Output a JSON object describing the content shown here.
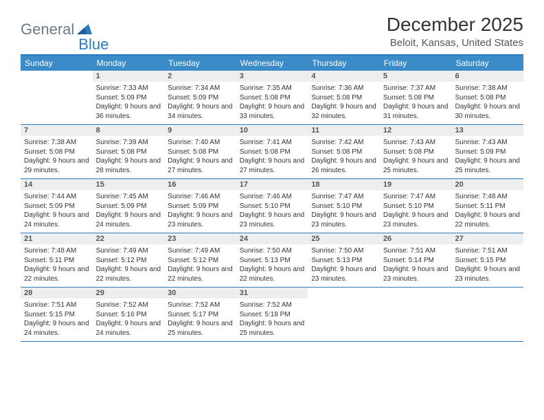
{
  "logo": {
    "text1": "General",
    "text2": "Blue"
  },
  "title": "December 2025",
  "location": "Beloit, Kansas, United States",
  "colors": {
    "header_bg": "#3b8bc9",
    "border": "#2b7bbf",
    "daynum_bg": "#eceef0",
    "text": "#333333"
  },
  "weekdays": [
    "Sunday",
    "Monday",
    "Tuesday",
    "Wednesday",
    "Thursday",
    "Friday",
    "Saturday"
  ],
  "first_day_index": 1,
  "days": [
    {
      "n": 1,
      "sunrise": "7:33 AM",
      "sunset": "5:09 PM",
      "daylight": "9 hours and 36 minutes."
    },
    {
      "n": 2,
      "sunrise": "7:34 AM",
      "sunset": "5:09 PM",
      "daylight": "9 hours and 34 minutes."
    },
    {
      "n": 3,
      "sunrise": "7:35 AM",
      "sunset": "5:08 PM",
      "daylight": "9 hours and 33 minutes."
    },
    {
      "n": 4,
      "sunrise": "7:36 AM",
      "sunset": "5:08 PM",
      "daylight": "9 hours and 32 minutes."
    },
    {
      "n": 5,
      "sunrise": "7:37 AM",
      "sunset": "5:08 PM",
      "daylight": "9 hours and 31 minutes."
    },
    {
      "n": 6,
      "sunrise": "7:38 AM",
      "sunset": "5:08 PM",
      "daylight": "9 hours and 30 minutes."
    },
    {
      "n": 7,
      "sunrise": "7:38 AM",
      "sunset": "5:08 PM",
      "daylight": "9 hours and 29 minutes."
    },
    {
      "n": 8,
      "sunrise": "7:39 AM",
      "sunset": "5:08 PM",
      "daylight": "9 hours and 28 minutes."
    },
    {
      "n": 9,
      "sunrise": "7:40 AM",
      "sunset": "5:08 PM",
      "daylight": "9 hours and 27 minutes."
    },
    {
      "n": 10,
      "sunrise": "7:41 AM",
      "sunset": "5:08 PM",
      "daylight": "9 hours and 27 minutes."
    },
    {
      "n": 11,
      "sunrise": "7:42 AM",
      "sunset": "5:08 PM",
      "daylight": "9 hours and 26 minutes."
    },
    {
      "n": 12,
      "sunrise": "7:43 AM",
      "sunset": "5:08 PM",
      "daylight": "9 hours and 25 minutes."
    },
    {
      "n": 13,
      "sunrise": "7:43 AM",
      "sunset": "5:09 PM",
      "daylight": "9 hours and 25 minutes."
    },
    {
      "n": 14,
      "sunrise": "7:44 AM",
      "sunset": "5:09 PM",
      "daylight": "9 hours and 24 minutes."
    },
    {
      "n": 15,
      "sunrise": "7:45 AM",
      "sunset": "5:09 PM",
      "daylight": "9 hours and 24 minutes."
    },
    {
      "n": 16,
      "sunrise": "7:46 AM",
      "sunset": "5:09 PM",
      "daylight": "9 hours and 23 minutes."
    },
    {
      "n": 17,
      "sunrise": "7:46 AM",
      "sunset": "5:10 PM",
      "daylight": "9 hours and 23 minutes."
    },
    {
      "n": 18,
      "sunrise": "7:47 AM",
      "sunset": "5:10 PM",
      "daylight": "9 hours and 23 minutes."
    },
    {
      "n": 19,
      "sunrise": "7:47 AM",
      "sunset": "5:10 PM",
      "daylight": "9 hours and 23 minutes."
    },
    {
      "n": 20,
      "sunrise": "7:48 AM",
      "sunset": "5:11 PM",
      "daylight": "9 hours and 22 minutes."
    },
    {
      "n": 21,
      "sunrise": "7:48 AM",
      "sunset": "5:11 PM",
      "daylight": "9 hours and 22 minutes."
    },
    {
      "n": 22,
      "sunrise": "7:49 AM",
      "sunset": "5:12 PM",
      "daylight": "9 hours and 22 minutes."
    },
    {
      "n": 23,
      "sunrise": "7:49 AM",
      "sunset": "5:12 PM",
      "daylight": "9 hours and 22 minutes."
    },
    {
      "n": 24,
      "sunrise": "7:50 AM",
      "sunset": "5:13 PM",
      "daylight": "9 hours and 22 minutes."
    },
    {
      "n": 25,
      "sunrise": "7:50 AM",
      "sunset": "5:13 PM",
      "daylight": "9 hours and 23 minutes."
    },
    {
      "n": 26,
      "sunrise": "7:51 AM",
      "sunset": "5:14 PM",
      "daylight": "9 hours and 23 minutes."
    },
    {
      "n": 27,
      "sunrise": "7:51 AM",
      "sunset": "5:15 PM",
      "daylight": "9 hours and 23 minutes."
    },
    {
      "n": 28,
      "sunrise": "7:51 AM",
      "sunset": "5:15 PM",
      "daylight": "9 hours and 24 minutes."
    },
    {
      "n": 29,
      "sunrise": "7:52 AM",
      "sunset": "5:16 PM",
      "daylight": "9 hours and 24 minutes."
    },
    {
      "n": 30,
      "sunrise": "7:52 AM",
      "sunset": "5:17 PM",
      "daylight": "9 hours and 25 minutes."
    },
    {
      "n": 31,
      "sunrise": "7:52 AM",
      "sunset": "5:18 PM",
      "daylight": "9 hours and 25 minutes."
    }
  ],
  "labels": {
    "sunrise": "Sunrise:",
    "sunset": "Sunset:",
    "daylight": "Daylight:"
  }
}
